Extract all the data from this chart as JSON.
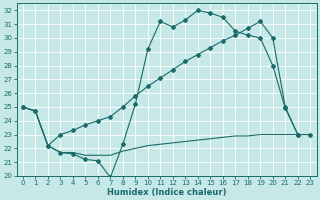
{
  "xlabel": "Humidex (Indice chaleur)",
  "bg_color": "#c6e8e6",
  "line_color": "#1a6b6b",
  "grid_color": "#ffffff",
  "ylim": [
    20,
    32.5
  ],
  "xlim": [
    -0.5,
    23.5
  ],
  "yticks": [
    20,
    21,
    22,
    23,
    24,
    25,
    26,
    27,
    28,
    29,
    30,
    31,
    32
  ],
  "xticks": [
    0,
    1,
    2,
    3,
    4,
    5,
    6,
    7,
    8,
    9,
    10,
    11,
    12,
    13,
    14,
    15,
    16,
    17,
    18,
    19,
    20,
    21,
    22,
    23
  ],
  "l1x": [
    0,
    1,
    2,
    3,
    4,
    5,
    6,
    7,
    8,
    9,
    10,
    11,
    12,
    13,
    14,
    15,
    16,
    17,
    18,
    19,
    20,
    21,
    22
  ],
  "l1y": [
    25.0,
    24.7,
    22.2,
    21.7,
    21.6,
    21.2,
    21.1,
    19.9,
    22.3,
    25.2,
    29.2,
    31.2,
    30.8,
    31.3,
    32.0,
    31.8,
    31.5,
    30.5,
    30.2,
    30.0,
    28.0,
    24.9,
    23.0
  ],
  "l2x": [
    0,
    1,
    2,
    3,
    4,
    5,
    6,
    7,
    8,
    9,
    10,
    11,
    12,
    13,
    14,
    15,
    16,
    17,
    18,
    19,
    20,
    21,
    22,
    23
  ],
  "l2y": [
    25.0,
    24.7,
    22.2,
    23.0,
    23.3,
    23.7,
    24.0,
    24.3,
    25.0,
    25.8,
    26.5,
    27.1,
    27.7,
    28.3,
    28.8,
    29.3,
    29.8,
    30.2,
    30.7,
    31.2,
    30.0,
    25.0,
    23.0,
    23.0
  ],
  "l3x": [
    0,
    1,
    2,
    3,
    4,
    5,
    6,
    7,
    8,
    9,
    10,
    11,
    12,
    13,
    14,
    15,
    16,
    17,
    18,
    19,
    20,
    21,
    22,
    23
  ],
  "l3y": [
    25.0,
    24.7,
    22.2,
    21.7,
    21.7,
    21.5,
    21.5,
    21.5,
    21.8,
    22.0,
    22.2,
    22.3,
    22.4,
    22.5,
    22.6,
    22.7,
    22.8,
    22.9,
    22.9,
    23.0,
    23.0,
    23.0,
    23.0,
    23.0
  ]
}
